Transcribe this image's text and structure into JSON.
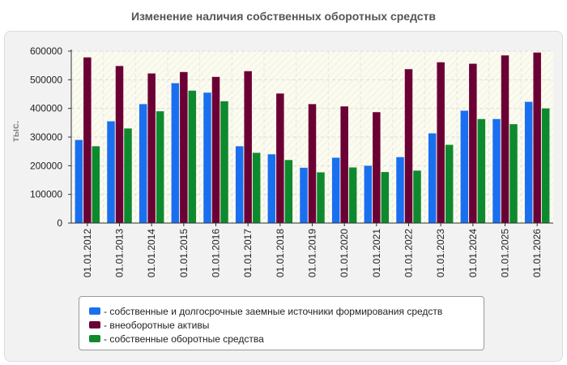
{
  "chart_data": {
    "type": "bar",
    "title": "Изменение наличия собственных оборотных средств",
    "ylabel": "тыс.",
    "xlabel": "",
    "ylim": [
      0,
      600000
    ],
    "yticks": [
      0,
      100000,
      200000,
      300000,
      400000,
      500000,
      600000
    ],
    "ytick_labels": [
      "0",
      "100000",
      "200000",
      "300000",
      "400000",
      "500000",
      "600000"
    ],
    "grid": true,
    "legend_position": "bottom",
    "categories": [
      "01.01.2012",
      "01.01.2013",
      "01.01.2014",
      "01.01.2015",
      "01.01.2016",
      "01.01.2017",
      "01.01.2018",
      "01.01.2019",
      "01.01.2020",
      "01.01.2021",
      "01.01.2022",
      "01.01.2023",
      "01.01.2024",
      "01.01.2025",
      "01.01.2026"
    ],
    "series": [
      {
        "name": "собственные и долгосрочные заемные источники формирования средств",
        "color": "#1a6ff0",
        "values": [
          290000,
          355000,
          415000,
          488000,
          455000,
          268000,
          240000,
          193000,
          228000,
          200000,
          230000,
          313000,
          392000,
          363000,
          423000
        ]
      },
      {
        "name": "внеоборотные активы",
        "color": "#6b0034",
        "values": [
          578000,
          548000,
          522000,
          527000,
          510000,
          530000,
          452000,
          415000,
          407000,
          387000,
          537000,
          561000,
          556000,
          585000,
          595000
        ]
      },
      {
        "name": "собственные оборотные средства",
        "color": "#0e8a2e",
        "values": [
          268000,
          330000,
          390000,
          462000,
          425000,
          245000,
          220000,
          177000,
          194000,
          178000,
          183000,
          273000,
          363000,
          345000,
          400000
        ]
      }
    ]
  }
}
